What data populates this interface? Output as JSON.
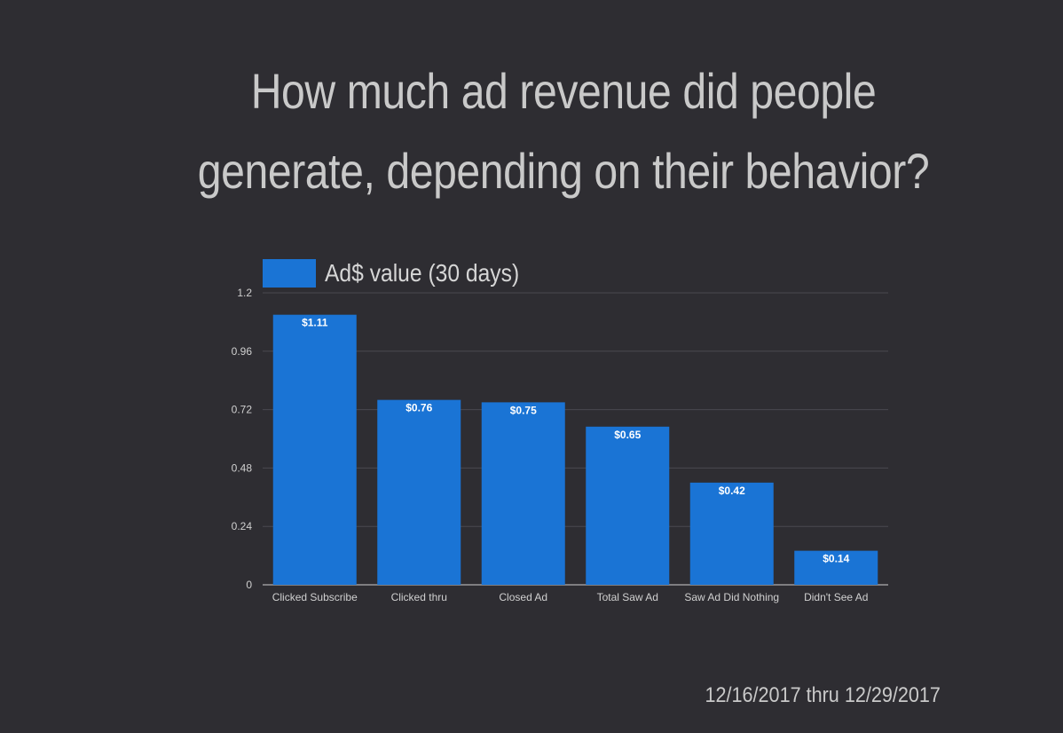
{
  "title_lines": [
    "How much ad revenue did people",
    "generate, depending on their behavior?"
  ],
  "footer": {
    "date_range": "12/16/2017 thru 12/29/2017"
  },
  "colors": {
    "background": "#2e2d32",
    "bar": "#1a74d5",
    "grid": "#4a4950",
    "axis_text": "#d0d0d0",
    "title": "#c9c9c9"
  },
  "chart_data": {
    "type": "bar",
    "title": "How much ad revenue did people generate, depending on their behavior?",
    "categories": [
      "Clicked Subscribe",
      "Clicked thru",
      "Closed Ad",
      "Total Saw Ad",
      "Saw Ad Did Nothing",
      "Didn't See Ad"
    ],
    "series": [
      {
        "name": "Ad$ value (30 days)",
        "values": [
          1.11,
          0.76,
          0.75,
          0.65,
          0.42,
          0.14
        ],
        "data_labels": [
          "$1.11",
          "$0.76",
          "$0.75",
          "$0.65",
          "$0.42",
          "$0.14"
        ]
      }
    ],
    "ylim": [
      0,
      1.2
    ],
    "yticks": [
      0,
      0.24,
      0.48,
      0.72,
      0.96,
      1.2
    ],
    "ytick_labels": [
      "0",
      "0.24",
      "0.48",
      "0.72",
      "0.96",
      "1.2"
    ],
    "grid": true,
    "legend_position": "top-left"
  }
}
